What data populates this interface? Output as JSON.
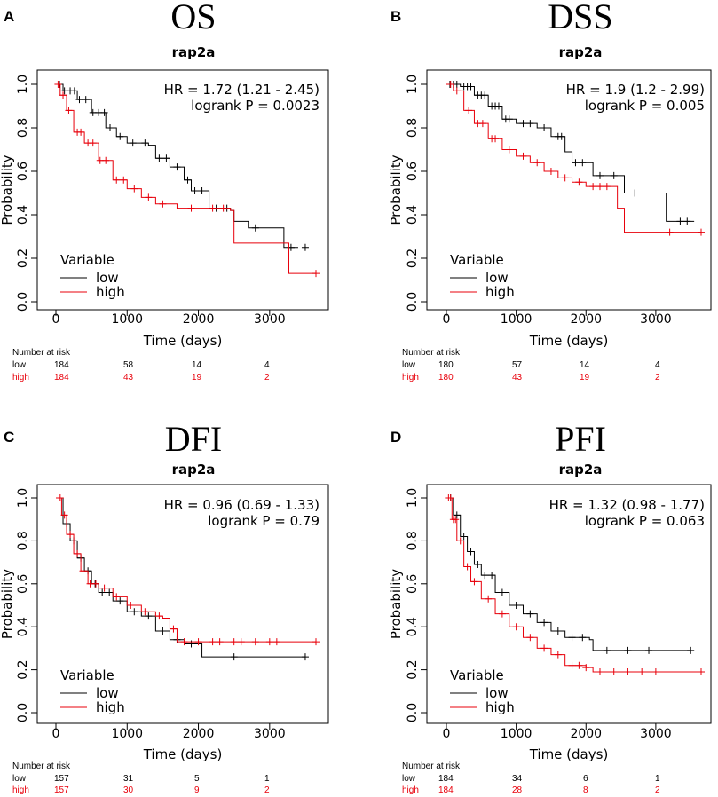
{
  "chart_data": [
    {
      "type": "line",
      "panel_letter": "A",
      "title": "OS",
      "subtitle": "rap2a",
      "xlabel": "Time (days)",
      "ylabel": "Probability",
      "xlim": [
        0,
        3750
      ],
      "ylim": [
        0,
        1
      ],
      "x_ticks": [
        "0",
        "1000",
        "2000",
        "3000"
      ],
      "y_ticks": [
        "0.0",
        "0.2",
        "0.4",
        "0.6",
        "0.8",
        "1.0"
      ],
      "stats": [
        "HR = 1.72 (1.21 - 2.45)",
        "logrank P = 0.0023"
      ],
      "legend": {
        "title": "Variable",
        "position": "bottom-left"
      },
      "series": [
        {
          "name": "low",
          "color": "#000000",
          "points": [
            [
              0,
              1.0
            ],
            [
              100,
              0.97
            ],
            [
              300,
              0.93
            ],
            [
              500,
              0.87
            ],
            [
              700,
              0.8
            ],
            [
              850,
              0.76
            ],
            [
              1000,
              0.73
            ],
            [
              1300,
              0.72
            ],
            [
              1400,
              0.66
            ],
            [
              1600,
              0.62
            ],
            [
              1800,
              0.56
            ],
            [
              1900,
              0.51
            ],
            [
              2100,
              0.51
            ],
            [
              2150,
              0.43
            ],
            [
              2450,
              0.42
            ],
            [
              2500,
              0.37
            ],
            [
              2700,
              0.34
            ],
            [
              3200,
              0.25
            ],
            [
              3400,
              0.25
            ]
          ],
          "censor_x": [
            50,
            120,
            200,
            260,
            330,
            420,
            520,
            600,
            680,
            760,
            900,
            1080,
            1250,
            1450,
            1550,
            1700,
            1850,
            1950,
            2050,
            2250,
            2400,
            2800,
            3300,
            3500
          ]
        },
        {
          "name": "high",
          "color": "#e8000b",
          "points": [
            [
              0,
              1.0
            ],
            [
              60,
              0.95
            ],
            [
              150,
              0.88
            ],
            [
              250,
              0.78
            ],
            [
              400,
              0.73
            ],
            [
              600,
              0.65
            ],
            [
              800,
              0.56
            ],
            [
              1000,
              0.52
            ],
            [
              1200,
              0.48
            ],
            [
              1400,
              0.45
            ],
            [
              1700,
              0.43
            ],
            [
              2100,
              0.43
            ],
            [
              2450,
              0.42
            ],
            [
              2500,
              0.27
            ],
            [
              3250,
              0.27
            ],
            [
              3270,
              0.13
            ],
            [
              3650,
              0.13
            ]
          ],
          "censor_x": [
            30,
            100,
            180,
            300,
            350,
            450,
            520,
            620,
            700,
            850,
            950,
            1100,
            1300,
            1500,
            1900,
            2200,
            2350,
            3650
          ]
        }
      ],
      "risk": {
        "header": "Number at risk",
        "low": [
          "low",
          "184",
          "58",
          "14",
          "4"
        ],
        "high": [
          "high",
          "184",
          "43",
          "19",
          "2"
        ]
      }
    },
    {
      "type": "line",
      "panel_letter": "B",
      "title": "DSS",
      "subtitle": "rap2a",
      "xlabel": "Time (days)",
      "ylabel": "Probability",
      "xlim": [
        0,
        3750
      ],
      "ylim": [
        0,
        1
      ],
      "x_ticks": [
        "0",
        "1000",
        "2000",
        "3000"
      ],
      "y_ticks": [
        "0.0",
        "0.2",
        "0.4",
        "0.6",
        "0.8",
        "1.0"
      ],
      "stats": [
        "HR = 1.9 (1.2 - 2.99)",
        "logrank P = 0.005"
      ],
      "legend": {
        "title": "Variable",
        "position": "bottom-left"
      },
      "series": [
        {
          "name": "low",
          "color": "#000000",
          "points": [
            [
              0,
              1.0
            ],
            [
              200,
              0.99
            ],
            [
              400,
              0.95
            ],
            [
              600,
              0.9
            ],
            [
              800,
              0.84
            ],
            [
              1000,
              0.82
            ],
            [
              1300,
              0.8
            ],
            [
              1500,
              0.76
            ],
            [
              1700,
              0.69
            ],
            [
              1800,
              0.64
            ],
            [
              2000,
              0.64
            ],
            [
              2100,
              0.58
            ],
            [
              2500,
              0.58
            ],
            [
              2550,
              0.5
            ],
            [
              3100,
              0.5
            ],
            [
              3150,
              0.37
            ],
            [
              3550,
              0.37
            ]
          ],
          "censor_x": [
            50,
            100,
            150,
            250,
            300,
            350,
            450,
            500,
            550,
            650,
            700,
            750,
            850,
            900,
            1100,
            1200,
            1400,
            1600,
            1650,
            1850,
            1950,
            2200,
            2400,
            2700,
            3350,
            3450
          ]
        },
        {
          "name": "high",
          "color": "#e8000b",
          "points": [
            [
              0,
              1.0
            ],
            [
              100,
              0.97
            ],
            [
              250,
              0.88
            ],
            [
              400,
              0.82
            ],
            [
              600,
              0.75
            ],
            [
              800,
              0.7
            ],
            [
              1000,
              0.67
            ],
            [
              1200,
              0.64
            ],
            [
              1400,
              0.6
            ],
            [
              1600,
              0.57
            ],
            [
              1800,
              0.55
            ],
            [
              2000,
              0.53
            ],
            [
              2400,
              0.53
            ],
            [
              2450,
              0.43
            ],
            [
              2550,
              0.32
            ],
            [
              3650,
              0.32
            ]
          ],
          "censor_x": [
            60,
            150,
            320,
            450,
            520,
            650,
            700,
            900,
            1100,
            1300,
            1500,
            1700,
            1900,
            2100,
            2200,
            2300,
            3200,
            3650
          ]
        }
      ],
      "risk": {
        "header": "Number at risk",
        "low": [
          "low",
          "180",
          "57",
          "14",
          "4"
        ],
        "high": [
          "high",
          "180",
          "43",
          "19",
          "2"
        ]
      }
    },
    {
      "type": "line",
      "panel_letter": "C",
      "title": "DFI",
      "subtitle": "rap2a",
      "xlabel": "Time (days)",
      "ylabel": "Probability",
      "xlim": [
        0,
        3750
      ],
      "ylim": [
        0,
        1
      ],
      "x_ticks": [
        "0",
        "1000",
        "2000",
        "3000"
      ],
      "y_ticks": [
        "0.0",
        "0.2",
        "0.4",
        "0.6",
        "0.8",
        "1.0"
      ],
      "stats": [
        "HR = 0.96 (0.69 - 1.33)",
        "logrank P = 0.79"
      ],
      "legend": {
        "title": "Variable",
        "position": "bottom-left"
      },
      "series": [
        {
          "name": "low",
          "color": "#000000",
          "points": [
            [
              0,
              1.0
            ],
            [
              100,
              0.88
            ],
            [
              200,
              0.8
            ],
            [
              300,
              0.72
            ],
            [
              400,
              0.66
            ],
            [
              500,
              0.6
            ],
            [
              600,
              0.56
            ],
            [
              800,
              0.52
            ],
            [
              1000,
              0.47
            ],
            [
              1200,
              0.45
            ],
            [
              1400,
              0.38
            ],
            [
              1600,
              0.34
            ],
            [
              1800,
              0.32
            ],
            [
              2000,
              0.32
            ],
            [
              2050,
              0.26
            ],
            [
              3500,
              0.26
            ]
          ],
          "censor_x": [
            150,
            250,
            350,
            450,
            550,
            650,
            750,
            900,
            1100,
            1300,
            1500,
            1700,
            1900,
            2500,
            3500
          ]
        },
        {
          "name": "high",
          "color": "#e8000b",
          "points": [
            [
              0,
              1.0
            ],
            [
              80,
              0.92
            ],
            [
              150,
              0.83
            ],
            [
              250,
              0.74
            ],
            [
              350,
              0.66
            ],
            [
              450,
              0.6
            ],
            [
              600,
              0.58
            ],
            [
              800,
              0.54
            ],
            [
              1000,
              0.5
            ],
            [
              1200,
              0.47
            ],
            [
              1400,
              0.45
            ],
            [
              1500,
              0.44
            ],
            [
              1600,
              0.39
            ],
            [
              1700,
              0.33
            ],
            [
              3650,
              0.33
            ]
          ],
          "censor_x": [
            60,
            120,
            200,
            300,
            380,
            480,
            560,
            680,
            850,
            1050,
            1250,
            1450,
            1650,
            1800,
            2000,
            2200,
            2300,
            2500,
            2600,
            2800,
            3000,
            3100,
            3650
          ]
        }
      ],
      "risk": {
        "header": "Number at risk",
        "low": [
          "low",
          "157",
          "31",
          "5",
          "1"
        ],
        "high": [
          "high",
          "157",
          "30",
          "9",
          "2"
        ]
      }
    },
    {
      "type": "line",
      "panel_letter": "D",
      "title": "PFI",
      "subtitle": "rap2a",
      "xlabel": "Time (days)",
      "ylabel": "Probability",
      "xlim": [
        0,
        3750
      ],
      "ylim": [
        0,
        1
      ],
      "x_ticks": [
        "0",
        "1000",
        "2000",
        "3000"
      ],
      "y_ticks": [
        "0.0",
        "0.2",
        "0.4",
        "0.6",
        "0.8",
        "1.0"
      ],
      "stats": [
        "HR = 1.32 (0.98 - 1.77)",
        "logrank P = 0.063"
      ],
      "legend": {
        "title": "Variable",
        "position": "bottom-left"
      },
      "series": [
        {
          "name": "low",
          "color": "#000000",
          "points": [
            [
              0,
              1.0
            ],
            [
              100,
              0.92
            ],
            [
              200,
              0.82
            ],
            [
              300,
              0.75
            ],
            [
              400,
              0.69
            ],
            [
              500,
              0.64
            ],
            [
              700,
              0.56
            ],
            [
              900,
              0.5
            ],
            [
              1100,
              0.46
            ],
            [
              1300,
              0.42
            ],
            [
              1500,
              0.38
            ],
            [
              1700,
              0.35
            ],
            [
              2050,
              0.34
            ],
            [
              2100,
              0.29
            ],
            [
              3500,
              0.29
            ]
          ],
          "censor_x": [
            60,
            150,
            250,
            350,
            450,
            550,
            650,
            800,
            1000,
            1200,
            1400,
            1600,
            1800,
            1950,
            2300,
            2600,
            2900,
            3500
          ]
        },
        {
          "name": "high",
          "color": "#e8000b",
          "points": [
            [
              0,
              1.0
            ],
            [
              80,
              0.9
            ],
            [
              150,
              0.8
            ],
            [
              250,
              0.68
            ],
            [
              350,
              0.61
            ],
            [
              500,
              0.53
            ],
            [
              700,
              0.46
            ],
            [
              900,
              0.4
            ],
            [
              1100,
              0.35
            ],
            [
              1300,
              0.3
            ],
            [
              1500,
              0.27
            ],
            [
              1700,
              0.22
            ],
            [
              2000,
              0.21
            ],
            [
              2100,
              0.19
            ],
            [
              3650,
              0.19
            ]
          ],
          "censor_x": [
            30,
            60,
            100,
            130,
            200,
            300,
            400,
            600,
            800,
            1000,
            1200,
            1400,
            1600,
            1800,
            1900,
            2000,
            2200,
            2400,
            2600,
            2800,
            3000,
            3650
          ]
        }
      ],
      "risk": {
        "header": "Number at risk",
        "low": [
          "low",
          "184",
          "34",
          "6",
          "1"
        ],
        "high": [
          "high",
          "184",
          "28",
          "8",
          "2"
        ]
      }
    }
  ]
}
